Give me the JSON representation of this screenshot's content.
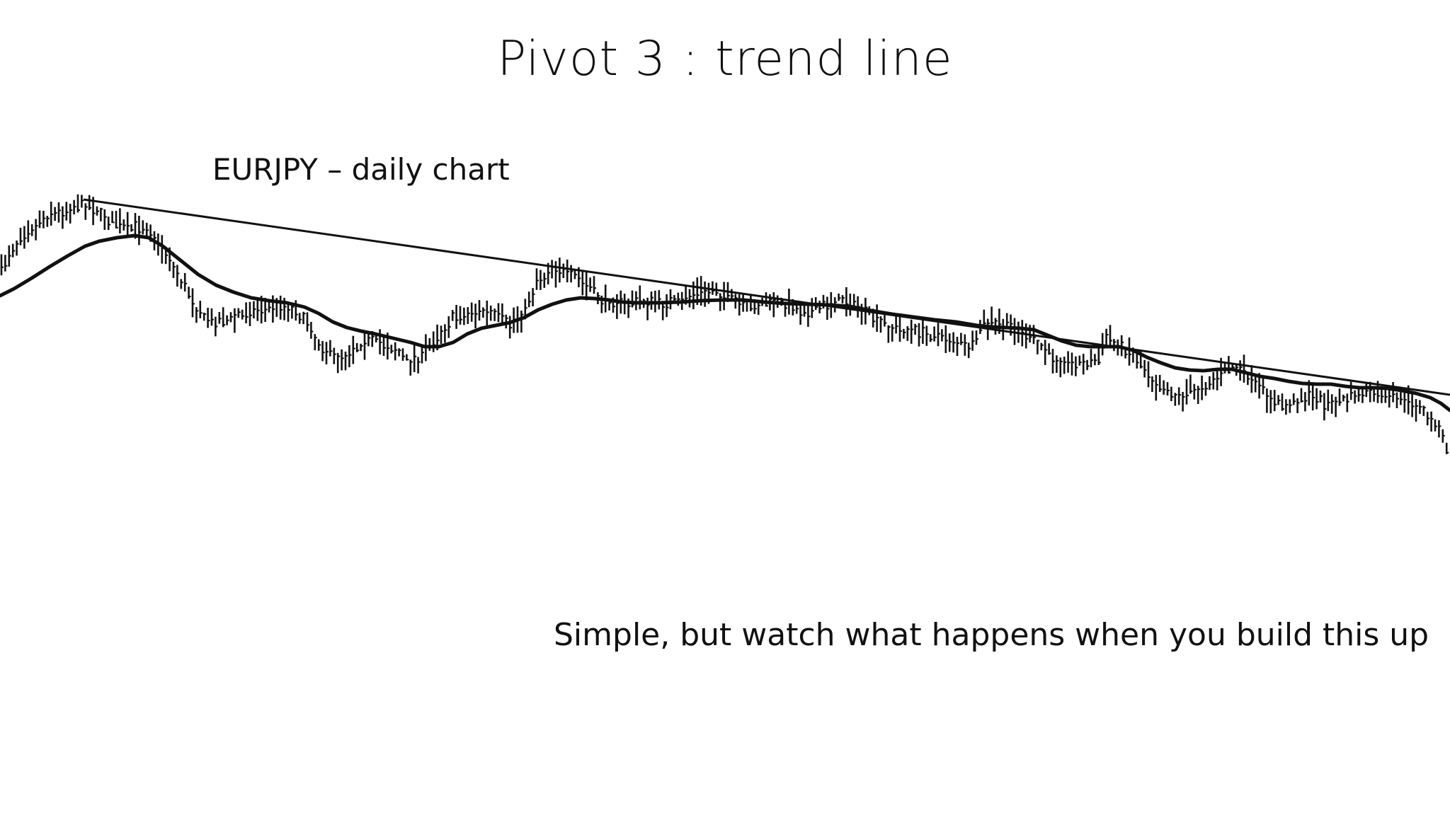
{
  "slide": {
    "title": "Pivot 3 : trend line",
    "caption": "Simple, but watch what happens when you build this up"
  },
  "colors": {
    "background": "#ffffff",
    "ink": "#111111"
  },
  "chart_data": {
    "type": "candlestick",
    "subtitle": "EURJPY – daily chart",
    "grid": false,
    "axes_visible": false,
    "legend": "none",
    "series": [
      {
        "name": "",
        "kind": "price-bars",
        "approx_count": 300
      },
      {
        "name": "",
        "kind": "moving-average",
        "style": "thick"
      },
      {
        "name": "",
        "kind": "trend-line",
        "style": "thin",
        "direction": "descending"
      }
    ]
  }
}
